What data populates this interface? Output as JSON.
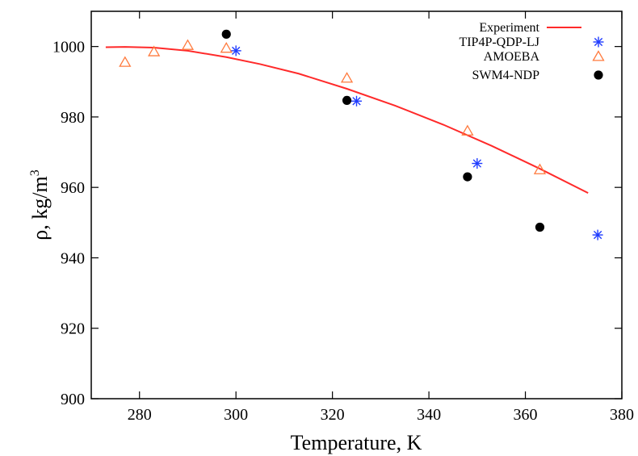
{
  "chart_data": {
    "type": "scatter",
    "xlabel": "Temperature, K",
    "ylabel_main": "ρ, kg/m",
    "ylabel_sup": "3",
    "xlim": [
      270,
      380
    ],
    "ylim": [
      900,
      1010
    ],
    "xticks": [
      280,
      300,
      320,
      340,
      360,
      380
    ],
    "yticks": [
      900,
      920,
      940,
      960,
      980,
      1000
    ],
    "grid": false,
    "legend_position": "top-right",
    "series": [
      {
        "name": "Experiment",
        "kind": "line",
        "color": "#ff2a2a",
        "x": [
          273,
          277,
          283,
          290,
          298,
          305,
          313,
          323,
          333,
          343,
          353,
          363,
          373
        ],
        "y": [
          999.8,
          999.9,
          999.7,
          998.8,
          997.0,
          995.0,
          992.3,
          988.0,
          983.2,
          977.8,
          971.8,
          965.3,
          958.4
        ]
      },
      {
        "name": "TIP4P-QDP-LJ",
        "kind": "scatter",
        "marker": "asterisk",
        "color": "#1f3cff",
        "x": [
          300,
          325,
          350,
          375
        ],
        "y": [
          998.8,
          984.5,
          966.8,
          946.5
        ]
      },
      {
        "name": "AMOEBA",
        "kind": "scatter",
        "marker": "triangle-open",
        "color": "#ff7a3d",
        "x": [
          277,
          283,
          290,
          298,
          323,
          348,
          363
        ],
        "y": [
          995.5,
          998.5,
          1000.3,
          999.5,
          991.0,
          976.0,
          965.0
        ]
      },
      {
        "name": "SWM4-NDP",
        "kind": "scatter",
        "marker": "filled-circle",
        "color": "#000000",
        "x": [
          298,
          323,
          348,
          363
        ],
        "y": [
          1003.5,
          984.7,
          963.0,
          948.7
        ]
      }
    ]
  }
}
